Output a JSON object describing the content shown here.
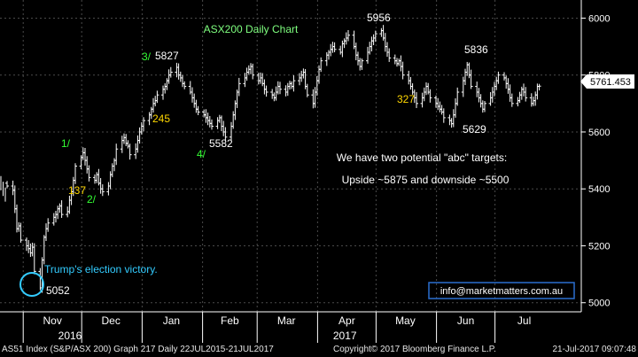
{
  "chart_data": {
    "type": "ohlc",
    "title": "ASX200 Daily Chart",
    "y_ticks": [
      5000,
      5200,
      5400,
      5600,
      5800,
      6000
    ],
    "ylim": [
      4968,
      6045
    ],
    "x_ticks": [
      "Nov",
      "Dec",
      "Jan",
      "Feb",
      "Mar",
      "Apr",
      "May",
      "Jun",
      "Jul"
    ],
    "x_years": [
      "2016",
      "2017"
    ],
    "last_price": "5761.453",
    "grid": true,
    "series": [
      {
        "x_start": "2016-10-21",
        "closes": [
          5410,
          5395,
          5330,
          5260,
          5270,
          5220,
          5200,
          5190,
          5175,
          5195,
          5110,
          5052,
          5150,
          5230,
          5260,
          5280,
          5300,
          5310,
          5330,
          5340,
          5310,
          5320,
          5360,
          5390,
          5430,
          5480,
          5510,
          5527,
          5500,
          5470,
          5440,
          5430,
          5450,
          5420,
          5400,
          5390,
          5410,
          5450,
          5480,
          5500,
          5540,
          5570,
          5580,
          5560,
          5550,
          5520,
          5540,
          5570,
          5600,
          5620,
          5640,
          5660,
          5680,
          5700,
          5710,
          5730,
          5750,
          5760,
          5780,
          5800,
          5810,
          5827,
          5800,
          5790,
          5770,
          5760,
          5740,
          5720,
          5700,
          5680,
          5670,
          5660,
          5650,
          5640,
          5630,
          5620,
          5640,
          5650,
          5620,
          5600,
          5582,
          5620,
          5660,
          5700,
          5740,
          5770,
          5790,
          5810,
          5820,
          5830,
          5800,
          5780,
          5790,
          5770,
          5750,
          5740,
          5730,
          5720,
          5740,
          5760,
          5750,
          5740,
          5760,
          5770,
          5760,
          5780,
          5790,
          5800,
          5810,
          5760,
          5730,
          5700,
          5740,
          5780,
          5820,
          5850,
          5870,
          5880,
          5890,
          5900,
          5890,
          5880,
          5910,
          5920,
          5930,
          5940,
          5900,
          5870,
          5850,
          5830,
          5850,
          5880,
          5900,
          5920,
          5930,
          5945,
          5956,
          5930,
          5900,
          5880,
          5860,
          5850,
          5840,
          5850,
          5830,
          5800,
          5780,
          5760,
          5740,
          5720,
          5700,
          5720,
          5740,
          5760,
          5740,
          5720,
          5700,
          5690,
          5680,
          5670,
          5650,
          5640,
          5629,
          5660,
          5700,
          5740,
          5780,
          5810,
          5836,
          5800,
          5760,
          5740,
          5720,
          5700,
          5680,
          5700,
          5720,
          5740,
          5760,
          5780,
          5800,
          5790,
          5770,
          5750,
          5720,
          5700,
          5710,
          5730,
          5750,
          5740,
          5720,
          5700,
          5710,
          5730,
          5760,
          5761
        ]
      }
    ],
    "wave_labels": [
      {
        "text": "1/",
        "x": "2016-11-23",
        "y": 5527
      },
      {
        "text": "137",
        "x": "2016-11-21",
        "y": 5390
      },
      {
        "text": "2/",
        "x": "2016-12-06",
        "y": 5370
      },
      {
        "text": "3/",
        "x": "2017-01-02",
        "y": 5827
      },
      {
        "text": "5827",
        "x": "2017-01-09",
        "y": 5827
      },
      {
        "text": "245",
        "x": "2017-01-13",
        "y": 5645
      },
      {
        "text": "4/",
        "x": "2017-01-31",
        "y": 5520
      },
      {
        "text": "5582",
        "x": "2017-02-03",
        "y": 5582
      },
      {
        "text": "5956",
        "x": "2017-04-24",
        "y": 5956
      },
      {
        "text": "327",
        "x": "2017-05-08",
        "y": 5705
      },
      {
        "text": "5836",
        "x": "2017-06-08",
        "y": 5836
      },
      {
        "text": "5629",
        "x": "2017-06-07",
        "y": 5629
      },
      {
        "text": "5052",
        "x": "2016-11-04",
        "y": 5052
      }
    ],
    "annotations": {
      "targets_line1": "We have two potential \"abc\" targets:",
      "targets_line2": "Upside ~5875 and downside ~5500",
      "election": "Trump's election victory.",
      "email": "info@marketmatters.com.au"
    }
  },
  "footer": {
    "left": "AS51 Index (S&P/ASX 200) Graph 217  Daily 22JUL2015-21JUL2017",
    "center": "Copyright© 2017 Bloomberg Finance L.P.",
    "right": "21-Jul-2017 09:07:48"
  },
  "colors": {
    "background": "#000000",
    "price_bar": "#ffffff",
    "grid": "#4a4a4a",
    "title": "#7fff7f",
    "wave_green": "#33ff33",
    "wave_yellow": "#ffd700",
    "election": "#33ccff",
    "email_box": "#2a6fcf"
  }
}
